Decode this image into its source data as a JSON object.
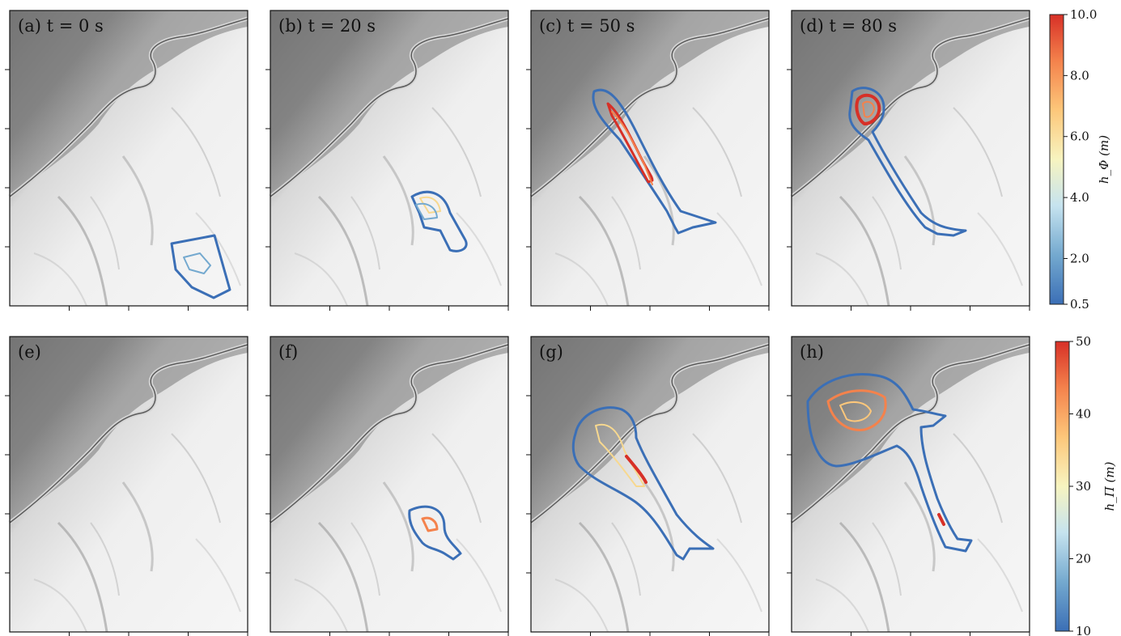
{
  "chart_data": {
    "type": "contour map panels",
    "rows": [
      {
        "quantity": "h_Phi",
        "colorbar": {
          "label": "h_Φ (m)",
          "ticks": [
            "0.5",
            "2.0",
            "4.0",
            "6.0",
            "8.0",
            "10.0"
          ],
          "tick_values": [
            0.5,
            2.0,
            4.0,
            6.0,
            8.0,
            10.0
          ],
          "range": [
            0.5,
            10.0
          ]
        },
        "panels": [
          {
            "label": "(a) t = 0 s",
            "time_s": 0
          },
          {
            "label": "(b) t = 20 s",
            "time_s": 20
          },
          {
            "label": "(c) t = 50 s",
            "time_s": 50
          },
          {
            "label": "(d) t = 80 s",
            "time_s": 80
          }
        ]
      },
      {
        "quantity": "h_Pi",
        "colorbar": {
          "label": "h_Π (m)",
          "ticks": [
            "10",
            "20",
            "30",
            "40",
            "50"
          ],
          "tick_values": [
            10,
            20,
            30,
            40,
            50
          ],
          "range": [
            10,
            50
          ]
        },
        "panels": [
          {
            "label": "(e)"
          },
          {
            "label": "(f)"
          },
          {
            "label": "(g)"
          },
          {
            "label": "(h)"
          }
        ]
      }
    ],
    "colormap": [
      "#3b6fb6",
      "#74a9cf",
      "#c6e3ef",
      "#f7f4c0",
      "#fdc77a",
      "#f4824c",
      "#d73027"
    ]
  }
}
